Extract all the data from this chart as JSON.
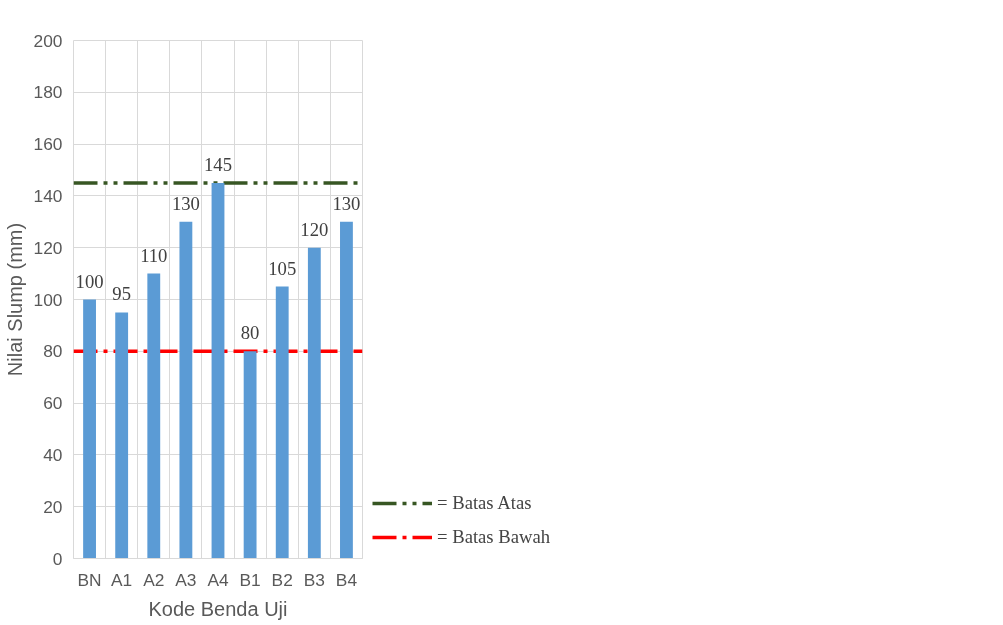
{
  "chart_data": {
    "type": "bar",
    "xlabel": "Kode Benda Uji",
    "ylabel": "Nilai Slump (mm)",
    "categories": [
      "BN",
      "A1",
      "A2",
      "A3",
      "A4",
      "B1",
      "B2",
      "B3",
      "B4"
    ],
    "values": [
      100,
      95,
      110,
      130,
      145,
      80,
      105,
      120,
      130
    ],
    "color": "#5b9bd5",
    "data_labels": true,
    "ylim": [
      0,
      200
    ],
    "yticks": [
      0,
      20,
      40,
      60,
      80,
      100,
      120,
      140,
      160,
      180,
      200
    ],
    "grid": true,
    "legend": "right",
    "ref_lines": [
      {
        "axis": "y",
        "value": 145,
        "label": "= Batas Atas",
        "color": "#375623",
        "line_style": "dashdotdot"
      },
      {
        "axis": "y",
        "value": 80,
        "label": "= Batas Bawah",
        "color": "#ff0000",
        "line_style": "dashdot"
      }
    ]
  }
}
